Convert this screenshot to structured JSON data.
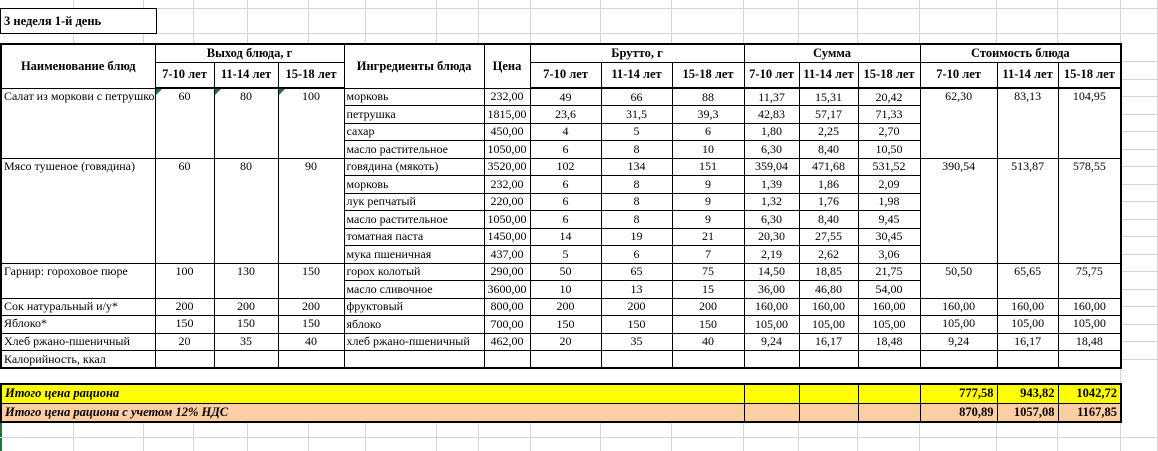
{
  "title": "3 неделя 1-й день",
  "header": {
    "dish": "Наименование блюд",
    "output": "Выход блюда, г",
    "ingredients": "Ингредиенты блюда",
    "price": "Цена",
    "gross": "Брутто, г",
    "sum": "Сумма",
    "cost": "Стоимость блюда",
    "age_groups": [
      "7-10 лет",
      "11-14 лет",
      "15-18 лет"
    ]
  },
  "dishes": [
    {
      "name": "Салат из моркови с петрушкой",
      "output": [
        "60",
        "80",
        "100"
      ],
      "cost": [
        "62,30",
        "83,13",
        "104,95"
      ],
      "ingredients": [
        {
          "name": "морковь",
          "price": "232,00",
          "gross": [
            "49",
            "66",
            "88"
          ],
          "sum": [
            "11,37",
            "15,31",
            "20,42"
          ]
        },
        {
          "name": "петрушка",
          "price": "1815,00",
          "gross": [
            "23,6",
            "31,5",
            "39,3"
          ],
          "sum": [
            "42,83",
            "57,17",
            "71,33"
          ]
        },
        {
          "name": "сахар",
          "price": "450,00",
          "gross": [
            "4",
            "5",
            "6"
          ],
          "sum": [
            "1,80",
            "2,25",
            "2,70"
          ]
        },
        {
          "name": "масло растительное",
          "price": "1050,00",
          "gross": [
            "6",
            "8",
            "10"
          ],
          "sum": [
            "6,30",
            "8,40",
            "10,50"
          ]
        }
      ]
    },
    {
      "name": "Мясо тушеное (говядина)",
      "output": [
        "60",
        "80",
        "90"
      ],
      "cost": [
        "390,54",
        "513,87",
        "578,55"
      ],
      "ingredients": [
        {
          "name": "говядина (мякоть)",
          "price": "3520,00",
          "gross": [
            "102",
            "134",
            "151"
          ],
          "sum": [
            "359,04",
            "471,68",
            "531,52"
          ]
        },
        {
          "name": "морковь",
          "price": "232,00",
          "gross": [
            "6",
            "8",
            "9"
          ],
          "sum": [
            "1,39",
            "1,86",
            "2,09"
          ]
        },
        {
          "name": "лук репчатый",
          "price": "220,00",
          "gross": [
            "6",
            "8",
            "9"
          ],
          "sum": [
            "1,32",
            "1,76",
            "1,98"
          ]
        },
        {
          "name": "масло растительное",
          "price": "1050,00",
          "gross": [
            "6",
            "8",
            "9"
          ],
          "sum": [
            "6,30",
            "8,40",
            "9,45"
          ]
        },
        {
          "name": "томатная паста",
          "price": "1450,00",
          "gross": [
            "14",
            "19",
            "21"
          ],
          "sum": [
            "20,30",
            "27,55",
            "30,45"
          ]
        },
        {
          "name": "мука пшеничная",
          "price": "437,00",
          "gross": [
            "5",
            "6",
            "7"
          ],
          "sum": [
            "2,19",
            "2,62",
            "3,06"
          ]
        }
      ]
    },
    {
      "name": "Гарнир: гороховое пюре",
      "output": [
        "100",
        "130",
        "150"
      ],
      "cost": [
        "50,50",
        "65,65",
        "75,75"
      ],
      "ingredients": [
        {
          "name": "горох колотый",
          "price": "290,00",
          "gross": [
            "50",
            "65",
            "75"
          ],
          "sum": [
            "14,50",
            "18,85",
            "21,75"
          ]
        },
        {
          "name": "масло сливочное",
          "price": "3600,00",
          "gross": [
            "10",
            "13",
            "15"
          ],
          "sum": [
            "36,00",
            "46,80",
            "54,00"
          ]
        }
      ]
    },
    {
      "name": "Сок натуральный и/у*",
      "output": [
        "200",
        "200",
        "200"
      ],
      "cost": [
        "160,00",
        "160,00",
        "160,00"
      ],
      "ingredients": [
        {
          "name": "фруктовый",
          "price": "800,00",
          "gross": [
            "200",
            "200",
            "200"
          ],
          "sum": [
            "160,00",
            "160,00",
            "160,00"
          ]
        }
      ]
    },
    {
      "name": "Яблоко*",
      "output": [
        "150",
        "150",
        "150"
      ],
      "cost": [
        "105,00",
        "105,00",
        "105,00"
      ],
      "ingredients": [
        {
          "name": "яблоко",
          "price": "700,00",
          "gross": [
            "150",
            "150",
            "150"
          ],
          "sum": [
            "105,00",
            "105,00",
            "105,00"
          ]
        }
      ]
    },
    {
      "name": "Хлеб ржано-пшеничный",
      "output": [
        "20",
        "35",
        "40"
      ],
      "cost": [
        "9,24",
        "16,17",
        "18,48"
      ],
      "ingredients": [
        {
          "name": "хлеб ржано-пшеничный",
          "price": "462,00",
          "gross": [
            "20",
            "35",
            "40"
          ],
          "sum": [
            "9,24",
            "16,17",
            "18,48"
          ]
        }
      ]
    }
  ],
  "calories_label": "Калорийность, ккал",
  "totals": [
    {
      "label": "Итого цена рациона",
      "values": [
        "777,58",
        "943,82",
        "1042,72"
      ],
      "bg": "#FFFF00"
    },
    {
      "label": "Итого цена рациона с учетом 12% НДС",
      "values": [
        "870,89",
        "1057,08",
        "1167,85"
      ],
      "bg": "#FBCFA3"
    }
  ],
  "colors": {
    "totals_yellow": "#FFFF00",
    "totals_peach": "#FBCFA3",
    "error_triangle_green": "#1F7244",
    "gridline": "#D4D4D4"
  }
}
